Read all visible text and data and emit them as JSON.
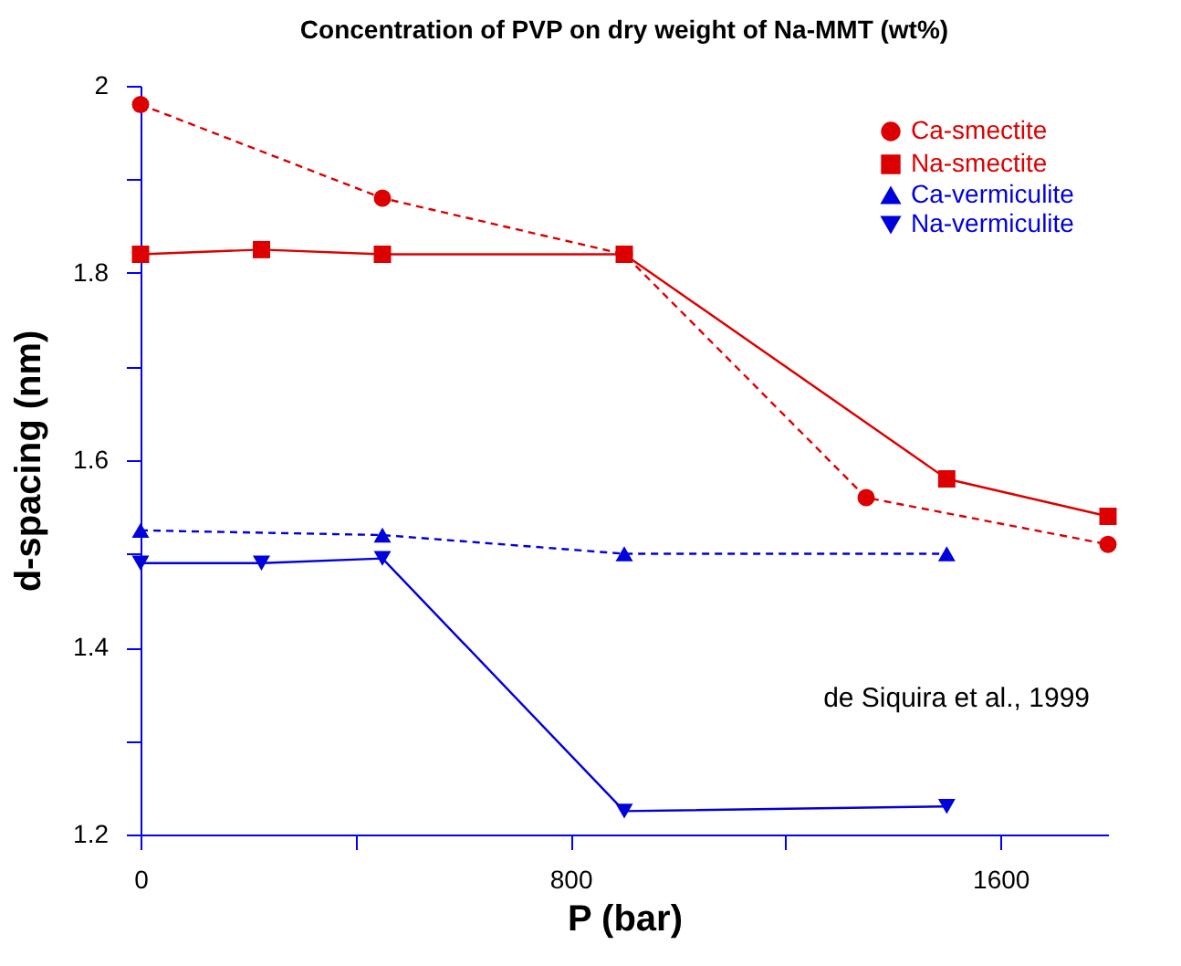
{
  "chart_data": {
    "type": "line",
    "title": "Concentration of PVP on dry weight of Na-MMT (wt%)",
    "xlabel": "P (bar)",
    "ylabel": "d-spacing (nm)",
    "xlim": [
      0,
      1800
    ],
    "xticks": [
      0,
      {
        "value": 400,
        "label": null
      },
      800,
      {
        "value": 1200,
        "label": null
      },
      1600
    ],
    "ylim": [
      1.2,
      2.0
    ],
    "yticks": [
      1.2,
      {
        "value": 1.3,
        "label": null
      },
      1.4,
      {
        "value": 1.5,
        "label": null
      },
      1.6,
      {
        "value": 1.7,
        "label": null
      },
      1.8,
      {
        "value": 1.9,
        "label": null
      },
      2
    ],
    "grid": false,
    "legend": "top right",
    "annotations": [
      "de Siquira et al., 1999"
    ],
    "series": [
      {
        "name": "Ca-smectite",
        "color": "#dd0000",
        "marker": "circle",
        "line_style": "dashed",
        "x": [
          0,
          450,
          900,
          1350,
          1800
        ],
        "values": [
          1.98,
          1.88,
          1.82,
          1.56,
          1.51
        ]
      },
      {
        "name": "Na-smectite",
        "color": "#dd0000",
        "marker": "square",
        "line_style": "solid",
        "x": [
          0,
          225,
          450,
          900,
          1500,
          1800
        ],
        "values": [
          1.82,
          1.825,
          1.82,
          1.82,
          1.58,
          1.54
        ]
      },
      {
        "name": "Ca-vermiculite",
        "color": "#0000dd",
        "marker": "triangle",
        "line_style": "dashed",
        "x": [
          0,
          450,
          900,
          1500
        ],
        "values": [
          1.525,
          1.52,
          1.5,
          1.5
        ]
      },
      {
        "name": "Na-vermiculite",
        "color": "#0000dd",
        "marker": "triangle-down",
        "line_style": "solid",
        "x": [
          0,
          225,
          450,
          900,
          1500
        ],
        "values": [
          1.49,
          1.49,
          1.495,
          1.225,
          1.23
        ]
      }
    ]
  }
}
